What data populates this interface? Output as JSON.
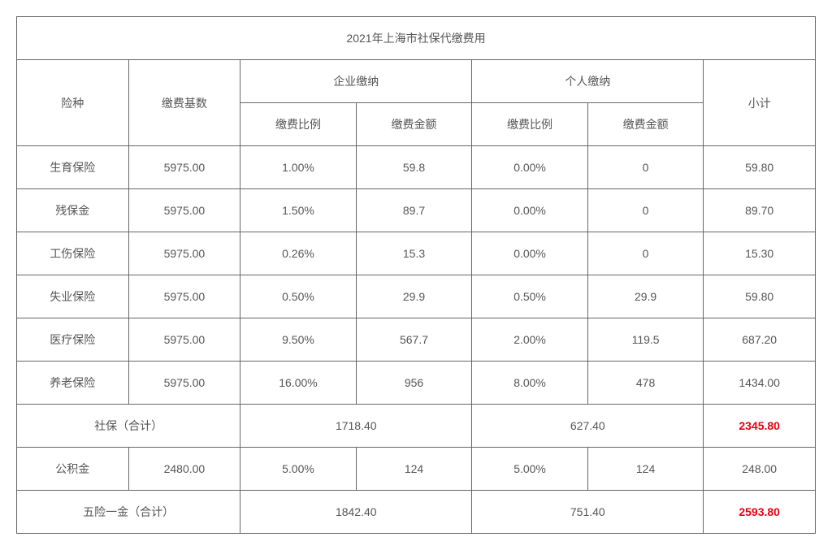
{
  "title": "2021年上海市社保代缴费用",
  "headers": {
    "insurance_type": "险种",
    "base": "缴费基数",
    "company": "企业缴纳",
    "personal": "个人缴纳",
    "subtotal": "小计",
    "rate": "缴费比例",
    "amount": "缴费金额"
  },
  "rows": [
    {
      "type": "生育保险",
      "base": "5975.00",
      "c_rate": "1.00%",
      "c_amount": "59.8",
      "p_rate": "0.00%",
      "p_amount": "0",
      "subtotal": "59.80"
    },
    {
      "type": "残保金",
      "base": "5975.00",
      "c_rate": "1.50%",
      "c_amount": "89.7",
      "p_rate": "0.00%",
      "p_amount": "0",
      "subtotal": "89.70"
    },
    {
      "type": "工伤保险",
      "base": "5975.00",
      "c_rate": "0.26%",
      "c_amount": "15.3",
      "p_rate": "0.00%",
      "p_amount": "0",
      "subtotal": "15.30"
    },
    {
      "type": "失业保险",
      "base": "5975.00",
      "c_rate": "0.50%",
      "c_amount": "29.9",
      "p_rate": "0.50%",
      "p_amount": "29.9",
      "subtotal": "59.80"
    },
    {
      "type": "医疗保险",
      "base": "5975.00",
      "c_rate": "9.50%",
      "c_amount": "567.7",
      "p_rate": "2.00%",
      "p_amount": "119.5",
      "subtotal": "687.20"
    },
    {
      "type": "养老保险",
      "base": "5975.00",
      "c_rate": "16.00%",
      "c_amount": "956",
      "p_rate": "8.00%",
      "p_amount": "478",
      "subtotal": "1434.00"
    }
  ],
  "shebao_total": {
    "label": "社保（合计）",
    "company": "1718.40",
    "personal": "627.40",
    "subtotal": "2345.80"
  },
  "gongjijin": {
    "label": "公积金",
    "base": "2480.00",
    "c_rate": "5.00%",
    "c_amount": "124",
    "p_rate": "5.00%",
    "p_amount": "124",
    "subtotal": "248.00"
  },
  "wuxian_total": {
    "label": "五险一金（合计）",
    "company": "1842.40",
    "personal": "751.40",
    "subtotal": "2593.80"
  }
}
